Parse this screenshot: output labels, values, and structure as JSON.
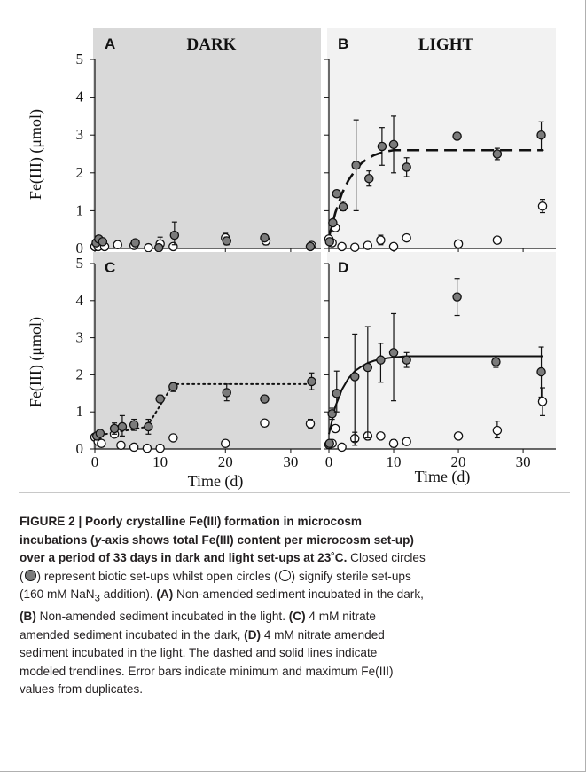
{
  "figure": {
    "y_label": "Fe(III) (μmol)",
    "x_label": "Time (d)",
    "colors": {
      "dark_bg": "#d9d9d9",
      "light_bg": "#f2f2f2",
      "biotic_fill": "#7b7b7b",
      "sterile_fill": "#ffffff"
    }
  },
  "chart_data": [
    {
      "panel": "A",
      "title": "DARK",
      "type": "scatter",
      "ylim": [
        0,
        5
      ],
      "xlim": [
        0,
        35
      ],
      "grid": false,
      "yticks": [
        0,
        1,
        2,
        3,
        4,
        5
      ],
      "xticks": [
        0,
        10,
        20,
        30
      ],
      "series": [
        {
          "points": [
            {
              "x": 0.2,
              "y": 0.15
            },
            {
              "x": 0.6,
              "y": 0.25
            },
            {
              "x": 1.2,
              "y": 0.18
            },
            {
              "x": 6.2,
              "y": 0.15,
              "err": [
                0.1,
                0.2
              ]
            },
            {
              "x": 9.8,
              "y": 0.02,
              "err": [
                0.0,
                0.1
              ]
            },
            {
              "x": 12.2,
              "y": 0.35,
              "err": [
                0.1,
                0.7
              ]
            },
            {
              "x": 20.2,
              "y": 0.2,
              "err": [
                0.1,
                0.3
              ]
            },
            {
              "x": 26.0,
              "y": 0.28,
              "err": [
                0.2,
                0.35
              ]
            },
            {
              "x": 33.0,
              "y": 0.05
            }
          ]
        },
        {
          "points": [
            {
              "x": 0.0,
              "y": 0.05
            },
            {
              "x": 0.5,
              "y": 0.05
            },
            {
              "x": 1.5,
              "y": 0.05
            },
            {
              "x": 3.5,
              "y": 0.1
            },
            {
              "x": 6.0,
              "y": 0.08
            },
            {
              "x": 8.2,
              "y": 0.02
            },
            {
              "x": 10.0,
              "y": 0.12,
              "err": [
                0.0,
                0.3
              ]
            },
            {
              "x": 12.0,
              "y": 0.05
            },
            {
              "x": 20.0,
              "y": 0.28,
              "err": [
                0.15,
                0.4
              ]
            },
            {
              "x": 26.2,
              "y": 0.2,
              "err": [
                0.1,
                0.28
              ]
            },
            {
              "x": 33.2,
              "y": 0.08
            }
          ]
        }
      ],
      "trendline": null
    },
    {
      "panel": "B",
      "title": "LIGHT",
      "type": "scatter",
      "ylim": [
        0,
        5
      ],
      "xlim": [
        0,
        35
      ],
      "grid": false,
      "yticks": [
        0,
        1,
        2,
        3,
        4,
        5
      ],
      "xticks": [
        0,
        10,
        20,
        30
      ],
      "series": [
        {
          "points": [
            {
              "x": 0.1,
              "y": 0.18
            },
            {
              "x": 0.6,
              "y": 0.68
            },
            {
              "x": 1.2,
              "y": 1.45
            },
            {
              "x": 2.2,
              "y": 1.1,
              "err": [
                1.0,
                1.25
              ]
            },
            {
              "x": 4.2,
              "y": 2.2,
              "err": [
                1.0,
                3.4
              ]
            },
            {
              "x": 6.2,
              "y": 1.85,
              "err": [
                1.65,
                2.05
              ]
            },
            {
              "x": 8.2,
              "y": 2.7,
              "err": [
                2.2,
                3.2
              ]
            },
            {
              "x": 10.0,
              "y": 2.75,
              "err": [
                2.0,
                3.5
              ]
            },
            {
              "x": 12.0,
              "y": 2.15,
              "err": [
                1.9,
                2.4
              ]
            },
            {
              "x": 19.8,
              "y": 2.97
            },
            {
              "x": 26.0,
              "y": 2.5,
              "err": [
                2.35,
                2.65
              ]
            },
            {
              "x": 32.8,
              "y": 3.0,
              "err": [
                2.6,
                3.35
              ]
            }
          ]
        },
        {
          "points": [
            {
              "x": 0.0,
              "y": 0.25
            },
            {
              "x": 0.5,
              "y": 0.15
            },
            {
              "x": 1.0,
              "y": 0.55
            },
            {
              "x": 2.0,
              "y": 0.05
            },
            {
              "x": 4.0,
              "y": 0.03
            },
            {
              "x": 6.0,
              "y": 0.08
            },
            {
              "x": 8.0,
              "y": 0.22,
              "err": [
                0.1,
                0.35
              ]
            },
            {
              "x": 10.0,
              "y": 0.05
            },
            {
              "x": 12.0,
              "y": 0.28,
              "err": [
                0.2,
                0.33
              ]
            },
            {
              "x": 20.0,
              "y": 0.12
            },
            {
              "x": 26.0,
              "y": 0.22
            },
            {
              "x": 33.0,
              "y": 1.12,
              "err": [
                0.95,
                1.3
              ]
            }
          ]
        }
      ],
      "trendline": {
        "style": "dashed",
        "points": [
          [
            0,
            0.3
          ],
          [
            1,
            0.95
          ],
          [
            2,
            1.45
          ],
          [
            3,
            1.8
          ],
          [
            4,
            2.05
          ],
          [
            5,
            2.25
          ],
          [
            6,
            2.38
          ],
          [
            7,
            2.47
          ],
          [
            8,
            2.53
          ],
          [
            9,
            2.57
          ],
          [
            10,
            2.6
          ],
          [
            33,
            2.6
          ]
        ]
      }
    },
    {
      "panel": "C",
      "title": "",
      "type": "scatter",
      "ylim": [
        0,
        5
      ],
      "xlim": [
        0,
        35
      ],
      "grid": false,
      "yticks": [
        0,
        1,
        2,
        3,
        4,
        5
      ],
      "xticks": [
        0,
        10,
        20,
        30
      ],
      "series": [
        {
          "points": [
            {
              "x": 0.3,
              "y": 0.35
            },
            {
              "x": 0.8,
              "y": 0.42
            },
            {
              "x": 3.0,
              "y": 0.55,
              "err": [
                0.4,
                0.7
              ]
            },
            {
              "x": 4.2,
              "y": 0.6,
              "err": [
                0.35,
                0.9
              ]
            },
            {
              "x": 6.0,
              "y": 0.65,
              "err": [
                0.5,
                0.8
              ]
            },
            {
              "x": 8.2,
              "y": 0.6,
              "err": [
                0.4,
                0.8
              ]
            },
            {
              "x": 10.0,
              "y": 1.35,
              "err": [
                1.3,
                1.45
              ]
            },
            {
              "x": 12.0,
              "y": 1.68,
              "err": [
                1.55,
                1.8
              ]
            },
            {
              "x": 20.2,
              "y": 1.52,
              "err": [
                1.3,
                1.75
              ]
            },
            {
              "x": 26.0,
              "y": 1.35
            },
            {
              "x": 33.2,
              "y": 1.82,
              "err": [
                1.6,
                2.05
              ]
            }
          ]
        },
        {
          "points": [
            {
              "x": 0.0,
              "y": 0.32
            },
            {
              "x": 0.5,
              "y": 0.2
            },
            {
              "x": 1.0,
              "y": 0.15
            },
            {
              "x": 3.0,
              "y": 0.4
            },
            {
              "x": 4.0,
              "y": 0.1
            },
            {
              "x": 6.0,
              "y": 0.05
            },
            {
              "x": 8.0,
              "y": 0.02
            },
            {
              "x": 10.0,
              "y": 0.02
            },
            {
              "x": 12.0,
              "y": 0.3
            },
            {
              "x": 20.0,
              "y": 0.15
            },
            {
              "x": 26.0,
              "y": 0.7
            },
            {
              "x": 33.0,
              "y": 0.68,
              "err": [
                0.55,
                0.8
              ]
            }
          ]
        }
      ],
      "trendline": {
        "style": "dotted",
        "points": [
          [
            0,
            0.35
          ],
          [
            8,
            0.6
          ],
          [
            12,
            1.75
          ],
          [
            33,
            1.75
          ]
        ]
      }
    },
    {
      "panel": "D",
      "title": "",
      "type": "scatter",
      "ylim": [
        0,
        5
      ],
      "xlim": [
        0,
        35
      ],
      "grid": false,
      "yticks": [
        0,
        1,
        2,
        3,
        4,
        5
      ],
      "xticks": [
        0,
        10,
        20,
        30
      ],
      "series": [
        {
          "points": [
            {
              "x": 0.1,
              "y": 0.15
            },
            {
              "x": 0.5,
              "y": 0.95,
              "err": [
                0.8,
                1.1
              ]
            },
            {
              "x": 1.2,
              "y": 1.5,
              "err": [
                1.0,
                2.1
              ]
            },
            {
              "x": 4.0,
              "y": 1.95,
              "err": [
                0.2,
                3.1
              ]
            },
            {
              "x": 6.0,
              "y": 2.2,
              "err": [
                0.3,
                3.3
              ]
            },
            {
              "x": 8.0,
              "y": 2.4,
              "err": [
                1.8,
                2.85
              ]
            },
            {
              "x": 10.0,
              "y": 2.6,
              "err": [
                1.3,
                3.65
              ]
            },
            {
              "x": 12.0,
              "y": 2.4,
              "err": [
                2.2,
                2.6
              ]
            },
            {
              "x": 19.8,
              "y": 4.1,
              "err": [
                3.6,
                4.6
              ]
            },
            {
              "x": 25.8,
              "y": 2.35,
              "err": [
                2.2,
                2.5
              ]
            },
            {
              "x": 32.8,
              "y": 2.08,
              "err": [
                1.4,
                2.75
              ]
            }
          ]
        },
        {
          "points": [
            {
              "x": 0.0,
              "y": 0.12
            },
            {
              "x": 0.5,
              "y": 0.15
            },
            {
              "x": 1.0,
              "y": 0.55
            },
            {
              "x": 2.0,
              "y": 0.05
            },
            {
              "x": 4.0,
              "y": 0.28,
              "err": [
                0.1,
                0.45
              ]
            },
            {
              "x": 6.0,
              "y": 0.35,
              "err": [
                0.25,
                0.45
              ]
            },
            {
              "x": 8.0,
              "y": 0.35
            },
            {
              "x": 10.0,
              "y": 0.15,
              "err": [
                0.05,
                0.25
              ]
            },
            {
              "x": 12.0,
              "y": 0.2
            },
            {
              "x": 20.0,
              "y": 0.35
            },
            {
              "x": 26.0,
              "y": 0.5,
              "err": [
                0.3,
                0.75
              ]
            },
            {
              "x": 33.0,
              "y": 1.28,
              "err": [
                0.9,
                1.65
              ]
            }
          ]
        }
      ],
      "trendline": {
        "style": "solid",
        "points": [
          [
            0,
            0.4
          ],
          [
            1,
            1.15
          ],
          [
            2,
            1.6
          ],
          [
            3,
            1.9
          ],
          [
            4,
            2.1
          ],
          [
            5,
            2.22
          ],
          [
            6,
            2.32
          ],
          [
            7,
            2.38
          ],
          [
            8,
            2.42
          ],
          [
            9,
            2.45
          ],
          [
            10,
            2.47
          ],
          [
            12,
            2.5
          ],
          [
            33,
            2.5
          ]
        ]
      }
    }
  ],
  "caption": {
    "heading_1": "FIGURE 2 | Poorly crystalline Fe(III) formation in microcosm",
    "heading_2a": "incubations (",
    "heading_2b": "y",
    "heading_2c": "-axis shows total Fe(III) content per microcosm set-up)",
    "heading_3": "over a period of 33 days in dark and light set-ups at 23˚C.",
    "t1": " Closed circles",
    "t2": "(",
    "t3": ") represent biotic set-ups whilst open circles (",
    "t4": ") signify sterile set-ups",
    "t5a": "(160 mM NaN",
    "t5sub": "3",
    "t5b": " addition).",
    "lA": "(A)",
    "t6": " Non-amended sediment incubated in the dark,",
    "lB": "(B)",
    "t7": " Non-amended sediment incubated in the light.",
    "lC": "(C)",
    "t8": " 4 mM nitrate",
    "t9": "amended sediment incubated in the dark,",
    "lD": "(D)",
    "t10": " 4 mM nitrate amended",
    "t11": "sediment incubated in the light. The dashed and solid lines indicate",
    "t12": "modeled trendlines. Error bars indicate minimum and maximum Fe(III)",
    "t13": "values from duplicates."
  }
}
